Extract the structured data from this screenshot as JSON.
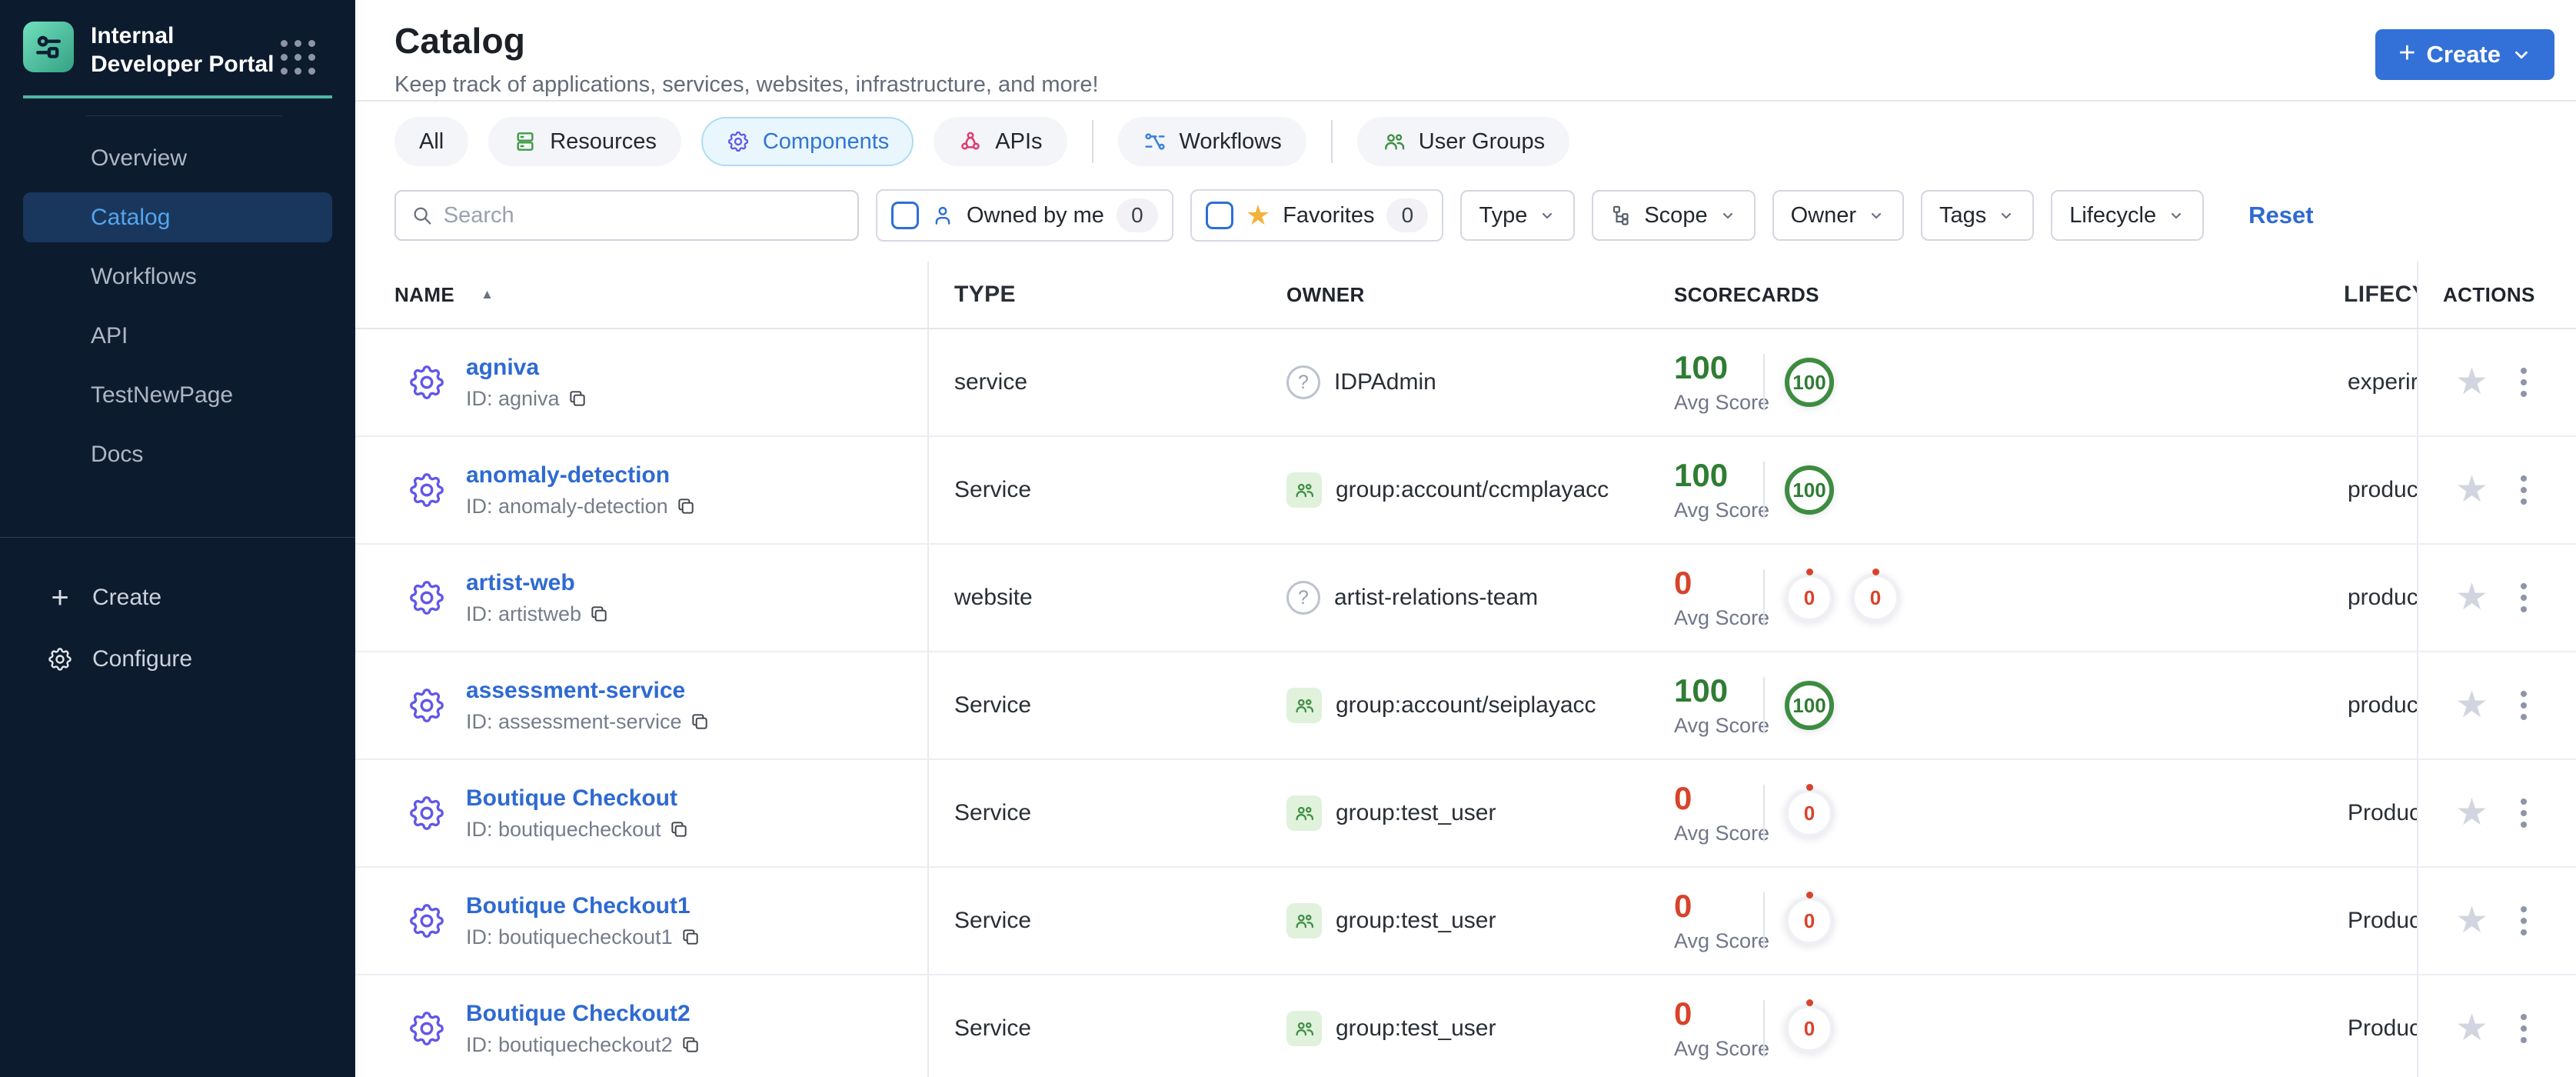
{
  "colors": {
    "accent_blue": "#3371d8",
    "link_blue": "#2e6ad1",
    "score_good": "#2e7d33",
    "score_bad": "#d8432a",
    "sidebar_bg": "#0d1b2e",
    "sidebar_active_bg": "#19375c",
    "sidebar_active_text": "#54a4ee",
    "teal_accent": "#4fb6a2",
    "tab_active_bg": "#e9f6fd",
    "tab_active_border": "#aedcf0",
    "star_yellow": "#f2b33d"
  },
  "brand": {
    "title": "Internal Developer Portal"
  },
  "sidebar": {
    "items": [
      {
        "label": "Overview",
        "active": false
      },
      {
        "label": "Catalog",
        "active": true
      },
      {
        "label": "Workflows",
        "active": false
      },
      {
        "label": "API",
        "active": false
      },
      {
        "label": "TestNewPage",
        "active": false
      },
      {
        "label": "Docs",
        "active": false
      }
    ],
    "create_label": "Create",
    "configure_label": "Configure"
  },
  "header": {
    "title": "Catalog",
    "subtitle": "Keep track of applications, services, websites, infrastructure, and more!",
    "create_button": "Create"
  },
  "tabs": [
    {
      "label": "All",
      "active": false
    },
    {
      "label": "Resources",
      "icon": "server-icon",
      "icon_color": "#3f9b45",
      "active": false
    },
    {
      "label": "Components",
      "icon": "gear-icon",
      "icon_color": "#6257e8",
      "active": true
    },
    {
      "label": "APIs",
      "icon": "api-icon",
      "icon_color": "#e23a6d",
      "active": false
    },
    {
      "label": "Workflows",
      "icon": "workflow-icon",
      "icon_color": "#3b82d8",
      "active": false
    },
    {
      "label": "User Groups",
      "icon": "users-icon",
      "icon_color": "#3f8f43",
      "active": false
    }
  ],
  "filters": {
    "search_placeholder": "Search",
    "owned_by_me_label": "Owned by me",
    "owned_by_me_count": "0",
    "favorites_label": "Favorites",
    "favorites_count": "0",
    "dropdowns": [
      "Type",
      "Scope",
      "Owner",
      "Tags",
      "Lifecycle"
    ],
    "reset_label": "Reset"
  },
  "table": {
    "columns": {
      "name": "NAME",
      "type": "TYPE",
      "owner": "OWNER",
      "scorecards": "SCORECARDS",
      "lifecycle": "LIFECYC",
      "actions": "ACTIONS"
    },
    "avg_score_label": "Avg Score",
    "rows": [
      {
        "name": "agniva",
        "id": "ID: agniva",
        "type": "service",
        "owner": "IDPAdmin",
        "owner_icon": "unknown",
        "score": "100",
        "score_level": "good",
        "badges": [
          {
            "value": "100",
            "level": "good"
          }
        ],
        "lifecycle": "experir"
      },
      {
        "name": "anomaly-detection",
        "id": "ID: anomaly-detection",
        "type": "Service",
        "owner": "group:account/ccmplayacc",
        "owner_icon": "group",
        "score": "100",
        "score_level": "good",
        "badges": [
          {
            "value": "100",
            "level": "good"
          }
        ],
        "lifecycle": "produc"
      },
      {
        "name": "artist-web",
        "id": "ID: artistweb",
        "type": "website",
        "owner": "artist-relations-team",
        "owner_icon": "unknown",
        "score": "0",
        "score_level": "bad",
        "badges": [
          {
            "value": "0",
            "level": "bad"
          },
          {
            "value": "0",
            "level": "bad"
          }
        ],
        "lifecycle": "produc"
      },
      {
        "name": "assessment-service",
        "id": "ID: assessment-service",
        "type": "Service",
        "owner": "group:account/seiplayacc",
        "owner_icon": "group",
        "score": "100",
        "score_level": "good",
        "badges": [
          {
            "value": "100",
            "level": "good"
          }
        ],
        "lifecycle": "produc"
      },
      {
        "name": "Boutique Checkout",
        "id": "ID: boutiquecheckout",
        "type": "Service",
        "owner": "group:test_user",
        "owner_icon": "group",
        "score": "0",
        "score_level": "bad",
        "badges": [
          {
            "value": "0",
            "level": "bad"
          }
        ],
        "lifecycle": "Produc"
      },
      {
        "name": "Boutique Checkout1",
        "id": "ID: boutiquecheckout1",
        "type": "Service",
        "owner": "group:test_user",
        "owner_icon": "group",
        "score": "0",
        "score_level": "bad",
        "badges": [
          {
            "value": "0",
            "level": "bad"
          }
        ],
        "lifecycle": "Produc"
      },
      {
        "name": "Boutique Checkout2",
        "id": "ID: boutiquecheckout2",
        "type": "Service",
        "owner": "group:test_user",
        "owner_icon": "group",
        "score": "0",
        "score_level": "bad",
        "badges": [
          {
            "value": "0",
            "level": "bad"
          }
        ],
        "lifecycle": "Produc"
      }
    ]
  }
}
